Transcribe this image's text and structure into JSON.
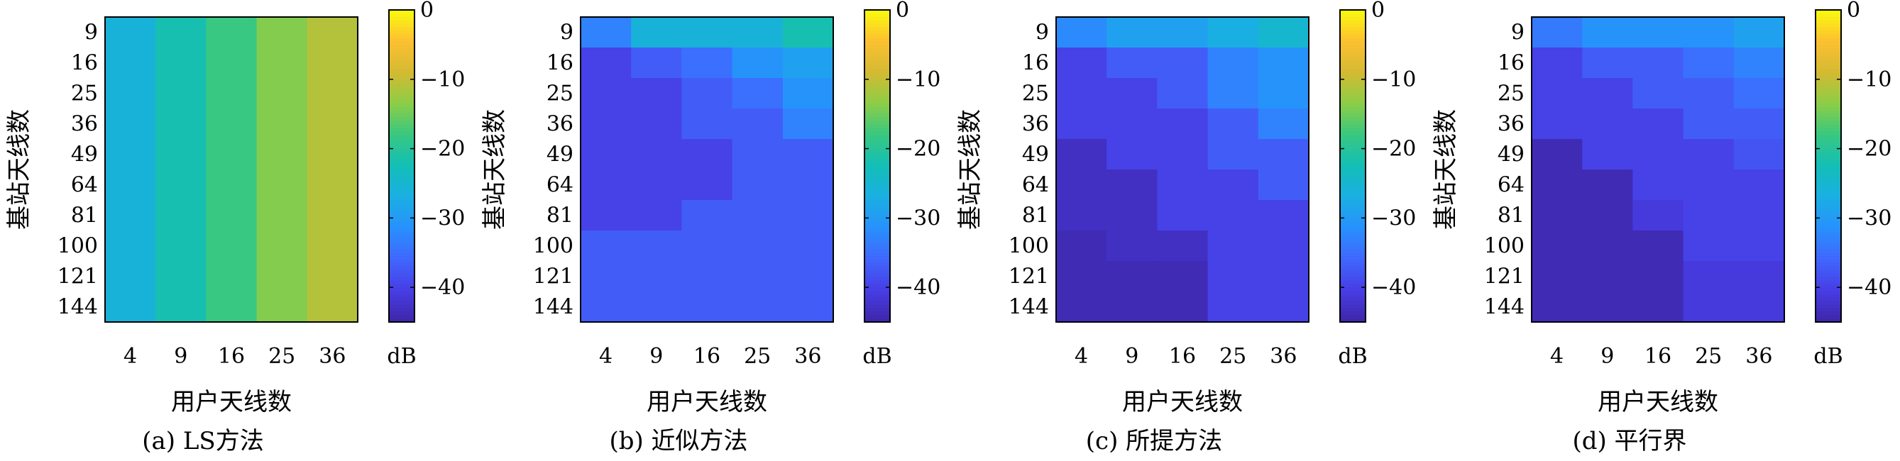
{
  "chart_data": [
    {
      "type": "heatmap",
      "caption": "(a) LS方法",
      "xlabel": "用户天线数",
      "ylabel": "基站天线数",
      "x_categories": [
        "4",
        "9",
        "16",
        "25",
        "36"
      ],
      "y_categories": [
        "9",
        "16",
        "25",
        "36",
        "49",
        "64",
        "81",
        "100",
        "121",
        "144"
      ],
      "values": [
        [
          -26,
          -22,
          -18,
          -14,
          -11
        ],
        [
          -26,
          -22,
          -18,
          -14,
          -11
        ],
        [
          -26,
          -22,
          -18,
          -14,
          -11
        ],
        [
          -26,
          -22,
          -18,
          -14,
          -11
        ],
        [
          -26,
          -22,
          -18,
          -14,
          -11
        ],
        [
          -26,
          -22,
          -18,
          -14,
          -11
        ],
        [
          -26,
          -22,
          -18,
          -14,
          -11
        ],
        [
          -26,
          -22,
          -18,
          -14,
          -11
        ],
        [
          -26,
          -22,
          -18,
          -14,
          -11
        ],
        [
          -26,
          -22,
          -18,
          -14,
          -11
        ]
      ],
      "colorbar": {
        "min": -45,
        "max": 0,
        "ticks": [
          0,
          -10,
          -20,
          -30,
          -40
        ],
        "tick_labels": [
          "0",
          "−10",
          "−20",
          "−30",
          "−40"
        ],
        "unit": "dB",
        "colormap": "parula"
      }
    },
    {
      "type": "heatmap",
      "caption": "(b) 近似方法",
      "xlabel": "用户天线数",
      "ylabel": "基站天线数",
      "x_categories": [
        "4",
        "9",
        "16",
        "25",
        "36"
      ],
      "y_categories": [
        "9",
        "16",
        "25",
        "36",
        "49",
        "64",
        "81",
        "100",
        "121",
        "144"
      ],
      "values": [
        [
          -33,
          -26,
          -26,
          -26,
          -22
        ],
        [
          -40,
          -37,
          -35,
          -31,
          -29
        ],
        [
          -40,
          -40,
          -37,
          -35,
          -31
        ],
        [
          -40,
          -40,
          -37,
          -37,
          -33
        ],
        [
          -40,
          -40,
          -40,
          -37,
          -37
        ],
        [
          -40,
          -40,
          -40,
          -37,
          -37
        ],
        [
          -40,
          -40,
          -37,
          -37,
          -37
        ],
        [
          -37,
          -37,
          -37,
          -37,
          -37
        ],
        [
          -37,
          -37,
          -37,
          -37,
          -37
        ],
        [
          -37,
          -37,
          -37,
          -37,
          -37
        ]
      ],
      "colorbar": {
        "min": -45,
        "max": 0,
        "ticks": [
          0,
          -10,
          -20,
          -30,
          -40
        ],
        "tick_labels": [
          "0",
          "−10",
          "−20",
          "−30",
          "−40"
        ],
        "unit": "dB",
        "colormap": "parula"
      }
    },
    {
      "type": "heatmap",
      "caption": "(c) 所提方法",
      "xlabel": "用户天线数",
      "ylabel": "基站天线数",
      "x_categories": [
        "4",
        "9",
        "16",
        "25",
        "36"
      ],
      "y_categories": [
        "9",
        "16",
        "25",
        "36",
        "49",
        "64",
        "81",
        "100",
        "121",
        "144"
      ],
      "values": [
        [
          -32,
          -29,
          -29,
          -27,
          -25
        ],
        [
          -40,
          -37,
          -37,
          -33,
          -31
        ],
        [
          -40,
          -40,
          -37,
          -33,
          -31
        ],
        [
          -40,
          -40,
          -40,
          -37,
          -33
        ],
        [
          -43,
          -40,
          -40,
          -37,
          -37
        ],
        [
          -43,
          -43,
          -40,
          -40,
          -37
        ],
        [
          -43,
          -43,
          -40,
          -40,
          -40
        ],
        [
          -44,
          -43,
          -43,
          -40,
          -40
        ],
        [
          -44,
          -44,
          -44,
          -40,
          -40
        ],
        [
          -44,
          -44,
          -44,
          -40,
          -40
        ]
      ],
      "colorbar": {
        "min": -45,
        "max": 0,
        "ticks": [
          0,
          -10,
          -20,
          -30,
          -40
        ],
        "tick_labels": [
          "0",
          "−10",
          "−20",
          "−30",
          "−40"
        ],
        "unit": "dB",
        "colormap": "parula"
      }
    },
    {
      "type": "heatmap",
      "caption": "(d) 平行界",
      "xlabel": "用户天线数",
      "ylabel": "基站天线数",
      "x_categories": [
        "4",
        "9",
        "16",
        "25",
        "36"
      ],
      "y_categories": [
        "9",
        "16",
        "25",
        "36",
        "49",
        "64",
        "81",
        "100",
        "121",
        "144"
      ],
      "values": [
        [
          -34,
          -31,
          -31,
          -31,
          -29
        ],
        [
          -40,
          -37,
          -37,
          -35,
          -33
        ],
        [
          -40,
          -40,
          -37,
          -37,
          -35
        ],
        [
          -40,
          -40,
          -40,
          -37,
          -37
        ],
        [
          -44,
          -40,
          -40,
          -40,
          -38
        ],
        [
          -44,
          -44,
          -40,
          -40,
          -40
        ],
        [
          -44,
          -44,
          -41,
          -40,
          -40
        ],
        [
          -44,
          -44,
          -44,
          -40,
          -40
        ],
        [
          -44,
          -44,
          -44,
          -41,
          -41
        ],
        [
          -44,
          -44,
          -44,
          -41,
          -41
        ]
      ],
      "colorbar": {
        "min": -45,
        "max": 0,
        "ticks": [
          0,
          -10,
          -20,
          -30,
          -40
        ],
        "tick_labels": [
          "0",
          "−10",
          "−20",
          "−30",
          "−40"
        ],
        "unit": "dB",
        "colormap": "parula"
      }
    }
  ]
}
